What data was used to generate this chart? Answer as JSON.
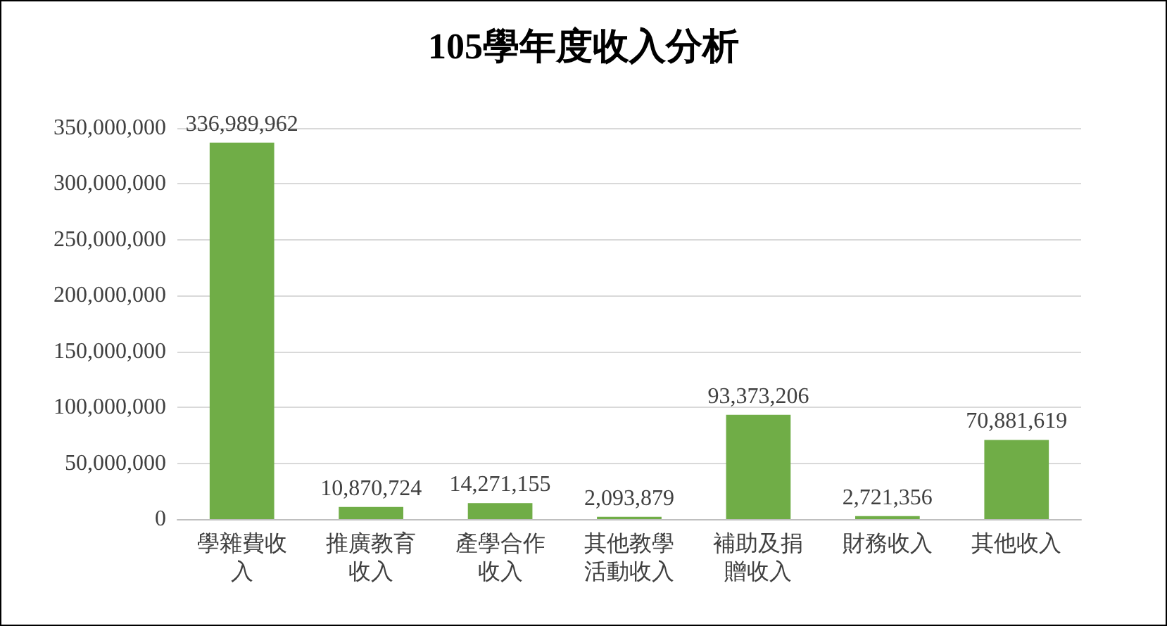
{
  "chart_data": {
    "type": "bar",
    "title": "105學年度收入分析",
    "categories": [
      "學雜費收入",
      "推廣教育收入",
      "產學合作收入",
      "其他教學活動收入",
      "補助及捐贈收入",
      "財務收入",
      "其他收入"
    ],
    "values": [
      336989962,
      10870724,
      14271155,
      2093879,
      93373206,
      2721356,
      70881619
    ],
    "value_labels": [
      "336,989,962",
      "10,870,724",
      "14,271,155",
      "2,093,879",
      "93,373,206",
      "2,721,356",
      "70,881,619"
    ],
    "color": "#70ad47",
    "ylim": [
      0,
      350000000
    ],
    "yticks": [
      0,
      {
        "value": 50000000,
        "label": "50,000,000"
      },
      {
        "value": 100000000,
        "label": "100,000,000"
      },
      {
        "value": 150000000,
        "label": "150,000,000"
      },
      {
        "value": 200000000,
        "label": "200,000,000"
      },
      {
        "value": 250000000,
        "label": "250,000,000"
      },
      {
        "value": 300000000,
        "label": "300,000,000"
      },
      {
        "value": 350000000,
        "label": "350,000,000"
      }
    ],
    "grid": "y"
  }
}
